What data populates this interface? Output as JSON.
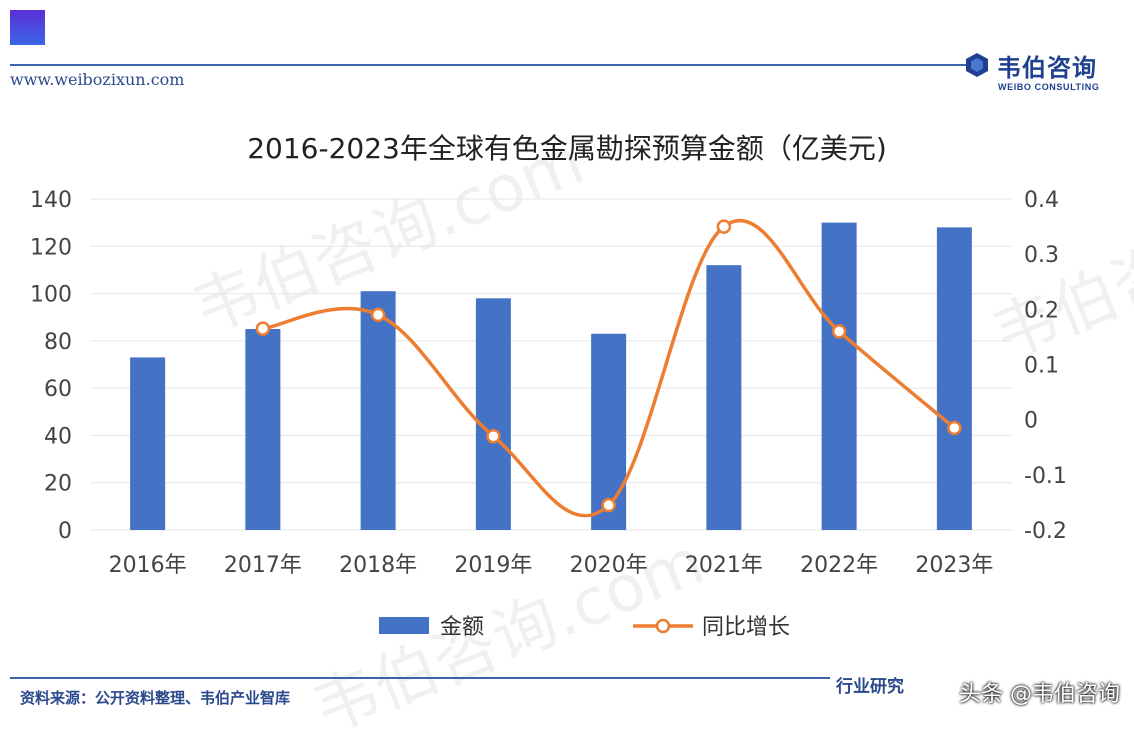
{
  "header": {
    "url": "www.weibozixun.com",
    "brand_name": "韦伯咨询",
    "brand_sub": "WEIBO CONSULTING"
  },
  "watermark": {
    "text": "韦伯咨询.com",
    "brand": "韦伯咨询"
  },
  "footer": {
    "source": "资料来源：公开资料整理、韦伯产业智库",
    "slogan": "行业研究",
    "credit": "头条 @韦伯咨询"
  },
  "colors": {
    "bar": "#4472c4",
    "line": "#ed7d31",
    "accent": "#2b4a8e"
  },
  "chart_data": {
    "type": "bar",
    "title": "2016-2023年全球有色金属勘探预算金额（亿美元)",
    "categories": [
      "2016年",
      "2017年",
      "2018年",
      "2019年",
      "2020年",
      "2021年",
      "2022年",
      "2023年"
    ],
    "series": [
      {
        "name": "金额",
        "type": "bar",
        "axis": "left",
        "values": [
          73,
          85,
          101,
          98,
          83,
          112,
          130,
          128
        ]
      },
      {
        "name": "同比增长",
        "type": "line",
        "axis": "right",
        "values": [
          null,
          0.165,
          0.19,
          -0.03,
          -0.155,
          0.35,
          0.16,
          -0.015
        ]
      }
    ],
    "y_left": {
      "min": 0,
      "max": 140,
      "ticks": [
        "0",
        "20",
        "40",
        "60",
        "80",
        "100",
        "120",
        "140"
      ]
    },
    "y_right": {
      "min": -0.2,
      "max": 0.4,
      "ticks": [
        "-0.2",
        "-0.1",
        "0",
        "0.1",
        "0.2",
        "0.3",
        "0.4"
      ]
    },
    "grid": true,
    "legend": "bottom"
  }
}
